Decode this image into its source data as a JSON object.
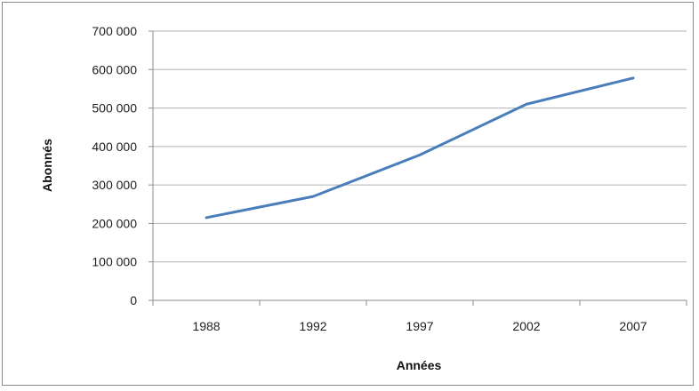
{
  "chart_data": {
    "type": "line",
    "title": "",
    "xlabel": "Années",
    "ylabel": "Abonnés",
    "categories": [
      "1988",
      "1992",
      "1997",
      "2002",
      "2007"
    ],
    "series": [
      {
        "values": [
          215000,
          270000,
          378000,
          510000,
          578000
        ]
      }
    ],
    "ylim": [
      0,
      700000
    ],
    "y_ticks": [
      0,
      100000,
      200000,
      300000,
      400000,
      500000,
      600000,
      700000
    ],
    "y_tick_labels": [
      "0",
      "100 000",
      "200 000",
      "300 000",
      "400 000",
      "500 000",
      "600 000",
      "700 000"
    ],
    "grid": "horizontal",
    "legend": "none",
    "colors": {
      "line": "#4a7ebb",
      "grid": "#b3b3b3",
      "axis": "#8c8c8c"
    }
  }
}
